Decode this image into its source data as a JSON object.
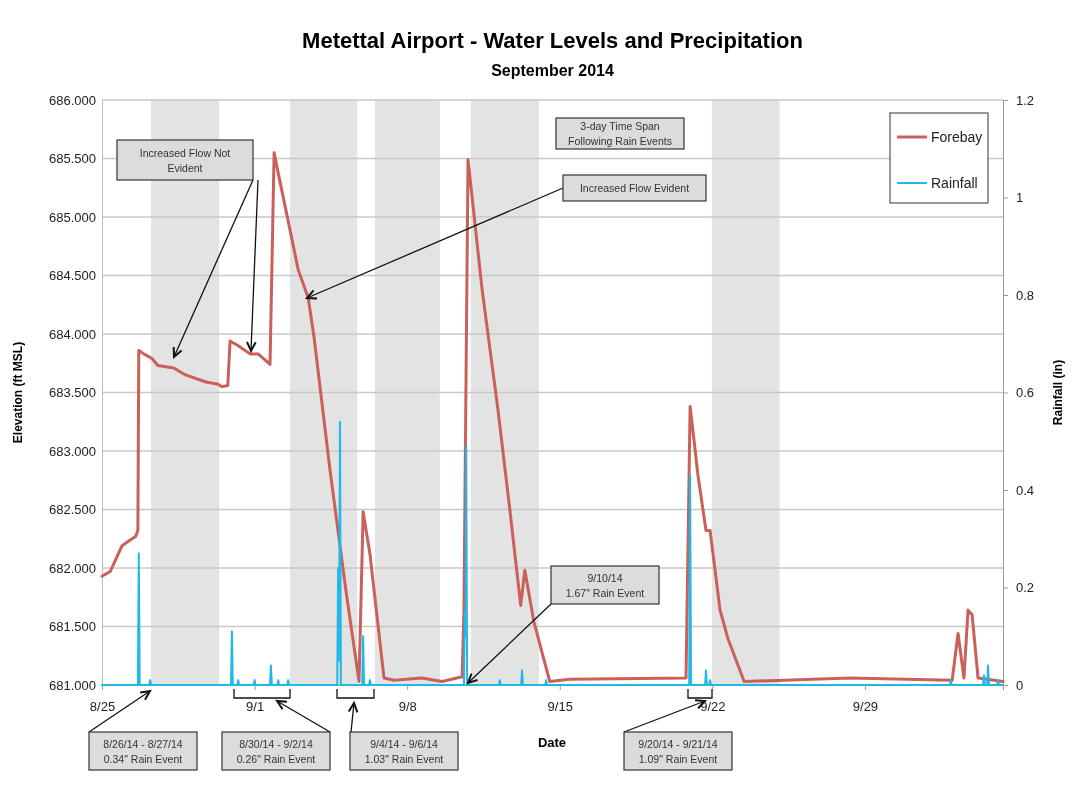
{
  "chart_data": {
    "type": "line",
    "title": "Metettal Airport - Water Levels and Precipitation",
    "subtitle": "September 2014",
    "xlabel": "Date",
    "ylabel": "Elevation (ft MSL)",
    "y2label": "Rainfall (in)",
    "xlim": [
      "2014-08-25",
      "2014-10-05T08:00"
    ],
    "xticks": [
      {
        "value": "2014-08-25",
        "label": "8/25"
      },
      {
        "value": "2014-09-01",
        "label": "9/1"
      },
      {
        "value": "2014-09-08",
        "label": "9/8"
      },
      {
        "value": "2014-09-15",
        "label": "9/15"
      },
      {
        "value": "2014-09-22",
        "label": "9/22"
      },
      {
        "value": "2014-09-29",
        "label": "9/29"
      }
    ],
    "ylim": [
      681,
      686
    ],
    "yticks": [
      {
        "value": 681,
        "label": "681.000"
      },
      {
        "value": 681.5,
        "label": "681.500"
      },
      {
        "value": 682,
        "label": "682.000"
      },
      {
        "value": 682.5,
        "label": "682.500"
      },
      {
        "value": 683,
        "label": "683.000"
      },
      {
        "value": 683.5,
        "label": "683.500"
      },
      {
        "value": 684,
        "label": "684.000"
      },
      {
        "value": 684.5,
        "label": "684.500"
      },
      {
        "value": 685,
        "label": "685.000"
      },
      {
        "value": 685.5,
        "label": "685.500"
      },
      {
        "value": 686,
        "label": "686.000"
      }
    ],
    "y2lim": [
      0,
      1.2
    ],
    "y2ticks": [
      0,
      0.2,
      0.4,
      0.6,
      0.8,
      1,
      1.2
    ],
    "grid": "y",
    "legend": "top right",
    "marker": "none",
    "line_style": "solid",
    "bands": [
      {
        "axis": "x",
        "from": "2014-08-27T06:00",
        "to": "2014-08-30T09:00",
        "color": "#e3e3e3"
      },
      {
        "axis": "x",
        "from": "2014-09-02T15:00",
        "to": "2014-09-05T17:00",
        "color": "#e3e3e3"
      },
      {
        "axis": "x",
        "from": "2014-09-06T12:30",
        "to": "2014-09-09T12:00",
        "color": "#e3e3e3"
      },
      {
        "axis": "x",
        "from": "2014-09-10T22:00",
        "to": "2014-09-14T01:00",
        "color": "#e3e3e3"
      },
      {
        "axis": "x",
        "from": "2014-09-21T23:30",
        "to": "2014-09-25T02:00",
        "color": "#e3e3e3"
      }
    ],
    "series": [
      {
        "name": "Forebay",
        "color": "#c9605a",
        "x": [
          "2014-08-25T00:00",
          "2014-08-25T09:00",
          "2014-08-25T22:00",
          "2014-08-26T07:00",
          "2014-08-26T13:00",
          "2014-08-26T15:30",
          "2014-08-26T16:30",
          "2014-08-26T22:00",
          "2014-08-27T07:00",
          "2014-08-27T13:30",
          "2014-08-28T07:00",
          "2014-08-28T20:00",
          "2014-08-29T18:30",
          "2014-08-30T08:00",
          "2014-08-30T12:00",
          "2014-08-30T18:30",
          "2014-08-30T21:00",
          "2014-08-31T06:00",
          "2014-08-31T19:00",
          "2014-09-01T04:00",
          "2014-09-01T17:00",
          "2014-09-01T21:30",
          "2014-09-02T04:00",
          "2014-09-02T15:00",
          "2014-09-03T00:00",
          "2014-09-03T11:00",
          "2014-09-03T17:30",
          "2014-09-04T11:00",
          "2014-09-05T04:30",
          "2014-09-05T19:00",
          "2014-09-05T23:30",
          "2014-09-06T07:00",
          "2014-09-06T22:30",
          "2014-09-07T09:30",
          "2014-09-08T16:00",
          "2014-09-09T14:30",
          "2014-09-10T12:30",
          "2014-09-10T14:30",
          "2014-09-10T19:00",
          "2014-09-11T10:30",
          "2014-09-12T04:00",
          "2014-09-12T17:00",
          "2014-09-13T05:00",
          "2014-09-13T09:30",
          "2014-09-13T19:30",
          "2014-09-14T13:00",
          "2014-09-15T11:00",
          "2014-09-20T19:00",
          "2014-09-20T23:30",
          "2014-09-21T04:00",
          "2014-09-21T08:00",
          "2014-09-21T17:00",
          "2014-09-21T21:30",
          "2014-09-22T08:30",
          "2014-09-22T17:00",
          "2014-09-23T11:00",
          "2014-09-28T07:30",
          "2014-10-03T00:00",
          "2014-10-03T06:30",
          "2014-10-03T13:00",
          "2014-10-03T17:30",
          "2014-10-03T22:00",
          "2014-10-04T04:30",
          "2014-10-05T08:00"
        ],
        "values": [
          681.93,
          681.97,
          682.19,
          682.24,
          682.27,
          682.32,
          683.86,
          683.83,
          683.79,
          683.73,
          683.71,
          683.65,
          683.59,
          683.57,
          683.55,
          683.56,
          683.94,
          683.9,
          683.83,
          683.83,
          683.74,
          685.55,
          685.3,
          684.89,
          684.55,
          684.31,
          683.97,
          682.84,
          681.81,
          681.03,
          682.48,
          682.12,
          681.06,
          681.04,
          681.06,
          681.03,
          681.07,
          681.64,
          685.49,
          684.38,
          683.35,
          682.5,
          681.68,
          681.98,
          681.54,
          681.03,
          681.05,
          681.06,
          683.38,
          683.08,
          682.8,
          682.32,
          682.32,
          681.64,
          681.4,
          681.03,
          681.06,
          681.04,
          681.44,
          681.06,
          681.64,
          681.6,
          681.06,
          681.03
        ]
      },
      {
        "name": "Rainfall",
        "axis": "y2",
        "color": "#1fb8e8",
        "x": [
          "2014-08-25T00:00",
          "2014-08-26T15:30",
          "2014-08-26T16:30",
          "2014-08-26T17:30",
          "2014-08-27T04:00",
          "2014-08-27T05:00",
          "2014-08-27T06:00",
          "2014-08-30T22:00",
          "2014-08-30T23:00",
          "2014-08-31T00:00",
          "2014-08-31T05:00",
          "2014-08-31T06:00",
          "2014-08-31T07:00",
          "2014-08-31T23:00",
          "2014-09-01T00:00",
          "2014-09-01T01:00",
          "2014-09-01T17:00",
          "2014-09-01T18:00",
          "2014-09-01T19:00",
          "2014-09-02T01:00",
          "2014-09-02T02:00",
          "2014-09-02T03:00",
          "2014-09-02T12:00",
          "2014-09-02T13:00",
          "2014-09-02T14:00",
          "2014-09-04T19:00",
          "2014-09-04T20:00",
          "2014-09-04T21:00",
          "2014-09-04T22:00",
          "2014-09-04T23:00",
          "2014-09-05T22:30",
          "2014-09-05T23:30",
          "2014-09-06T00:30",
          "2014-09-06T06:00",
          "2014-09-06T07:00",
          "2014-09-06T08:00",
          "2014-09-10T14:30",
          "2014-09-10T15:30",
          "2014-09-10T16:30",
          "2014-09-10T17:00",
          "2014-09-10T18:00",
          "2014-09-12T05:00",
          "2014-09-12T06:00",
          "2014-09-12T07:00",
          "2014-09-13T05:30",
          "2014-09-13T06:30",
          "2014-09-13T07:30",
          "2014-09-14T08:00",
          "2014-09-14T09:00",
          "2014-09-14T10:00",
          "2014-09-20T22:30",
          "2014-09-20T23:30",
          "2014-09-21T00:30",
          "2014-09-21T16:00",
          "2014-09-21T17:00",
          "2014-09-21T18:00",
          "2014-09-21T20:30",
          "2014-09-21T21:30",
          "2014-09-21T22:30",
          "2014-10-02T21:30",
          "2014-10-02T22:30",
          "2014-10-02T23:30",
          "2014-10-04T10:00",
          "2014-10-04T11:00",
          "2014-10-04T12:00",
          "2014-10-04T14:30",
          "2014-10-04T15:30",
          "2014-10-04T16:30",
          "2014-10-05T01:30",
          "2014-10-05T02:30",
          "2014-10-05T03:30",
          "2014-10-05T08:00"
        ],
        "values": [
          0,
          0,
          0.27,
          0,
          0,
          0.01,
          0,
          0,
          0.11,
          0,
          0,
          0.01,
          0,
          0,
          0.01,
          0,
          0,
          0.04,
          0,
          0,
          0.01,
          0,
          0,
          0.01,
          0,
          0,
          0.24,
          0.05,
          0.54,
          0,
          0,
          0.1,
          0,
          0,
          0.01,
          0,
          0,
          0.15,
          0.1,
          0.49,
          0,
          0,
          0.01,
          0,
          0,
          0.03,
          0,
          0,
          0.01,
          0,
          0,
          0.43,
          0,
          0,
          0.03,
          0,
          0,
          0.01,
          0,
          0,
          0.01,
          0,
          0,
          0.02,
          0,
          0,
          0.04,
          0,
          0,
          0.01,
          0,
          0
        ]
      }
    ],
    "annotations": [
      "Increased Flow Not\nEvident",
      "Increased Flow Evident",
      "3-day Time Span\nFollowing Rain Events",
      "9/10/14\n1.67\" Rain Event",
      "8/26/14 - 8/27/14\n0.34\" Rain Event",
      "8/30/14 - 9/2/14\n0.26\" Rain Event",
      "9/4/14 - 9/6/14\n1.03\" Rain Event",
      "9/20/14 - 9/21/14\n1.09\" Rain Event"
    ]
  }
}
